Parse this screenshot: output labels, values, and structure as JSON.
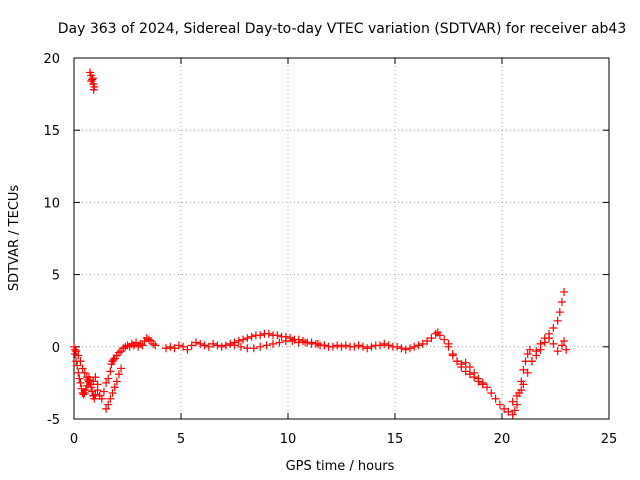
{
  "chart_data": {
    "type": "scatter",
    "title": "Day 363 of 2024, Sidereal Day-to-day VTEC variation (SDTVAR) for receiver ab43",
    "xlabel": "GPS time / hours",
    "ylabel": "SDTVAR / TECUs",
    "xlim": [
      0,
      25
    ],
    "ylim": [
      -5,
      20
    ],
    "xticks": [
      "0",
      "5",
      "10",
      "15",
      "20",
      "25"
    ],
    "yticks": [
      "-5",
      "0",
      "5",
      "10",
      "15",
      "20"
    ],
    "grid": true,
    "marker": "plus",
    "color": "#ff0000",
    "series": [
      {
        "name": "SDTVAR",
        "x": [
          0.75,
          0.8,
          0.85,
          0.9,
          0.95,
          0.8,
          0.88,
          0.92,
          0.0,
          0.05,
          0.1,
          0.15,
          0.2,
          0.25,
          0.3,
          0.35,
          0.4,
          0.45,
          0.5,
          0.55,
          0.6,
          0.65,
          0.7,
          0.75,
          0.8,
          0.85,
          0.9,
          0.95,
          1.0,
          0.05,
          0.1,
          0.2,
          0.3,
          0.4,
          0.5,
          0.6,
          0.7,
          0.8,
          0.9,
          1.0,
          1.1,
          1.1,
          1.2,
          1.3,
          1.4,
          1.5,
          1.6,
          1.7,
          1.75,
          1.8,
          1.85,
          1.9,
          2.0,
          2.1,
          2.2,
          2.3,
          2.4,
          2.5,
          2.6,
          2.7,
          2.8,
          2.9,
          3.0,
          3.1,
          3.2,
          3.3,
          3.4,
          3.5,
          3.6,
          3.7,
          3.8,
          1.5,
          1.6,
          1.7,
          1.8,
          1.9,
          2.0,
          2.1,
          2.2,
          4.3,
          4.5,
          4.7,
          4.9,
          5.1,
          5.3,
          5.5,
          5.7,
          5.9,
          6.1,
          6.3,
          6.5,
          6.7,
          6.9,
          7.1,
          7.3,
          7.5,
          7.7,
          7.9,
          8.1,
          8.3,
          8.5,
          8.7,
          8.9,
          9.1,
          9.3,
          9.5,
          9.7,
          9.9,
          10.1,
          10.3,
          10.5,
          10.7,
          10.9,
          11.1,
          11.3,
          11.5,
          11.7,
          11.9,
          12.1,
          12.3,
          12.5,
          12.7,
          12.9,
          13.1,
          13.3,
          13.5,
          13.7,
          13.9,
          14.1,
          14.3,
          14.5,
          14.7,
          14.9,
          15.1,
          15.3,
          15.5,
          15.7,
          15.9,
          16.1,
          16.3,
          16.5,
          16.7,
          16.9,
          17.0,
          17.1,
          17.3,
          17.5,
          7.5,
          7.8,
          8.1,
          8.4,
          8.7,
          9.0,
          9.3,
          9.6,
          9.9,
          10.2,
          10.5,
          10.8,
          11.1,
          11.4,
          11.7,
          17.5,
          17.7,
          17.9,
          18.1,
          18.3,
          18.5,
          18.7,
          18.9,
          19.1,
          19.3,
          19.5,
          19.7,
          19.9,
          20.1,
          20.3,
          20.5,
          20.6,
          20.7,
          20.8,
          20.9,
          21.0,
          21.1,
          21.2,
          21.3,
          17.7,
          17.9,
          18.1,
          18.3,
          18.5,
          18.7,
          18.9,
          19.1,
          20.5,
          20.7,
          20.9,
          21.0,
          21.2,
          21.4,
          21.6,
          21.8,
          22.0,
          22.2,
          22.4,
          22.6,
          22.7,
          22.8,
          22.9,
          21.4,
          21.6,
          21.8,
          22.0,
          22.2,
          22.4,
          22.6,
          22.8,
          22.9,
          23.0
        ],
        "y": [
          19.0,
          18.8,
          18.5,
          18.2,
          18.0,
          18.4,
          18.6,
          17.8,
          0.0,
          -0.5,
          -1.0,
          -1.3,
          -1.8,
          -2.2,
          -2.5,
          -2.9,
          -3.2,
          -3.3,
          -3.2,
          -3.0,
          -2.7,
          -2.3,
          -2.1,
          -2.3,
          -2.8,
          -3.1,
          -3.4,
          -3.6,
          -3.3,
          -0.2,
          -0.3,
          -0.6,
          -1.0,
          -1.5,
          -1.8,
          -2.1,
          -2.4,
          -2.6,
          -2.4,
          -2.1,
          -2.6,
          -3.0,
          -3.4,
          -3.6,
          -3.1,
          -2.5,
          -2.2,
          -1.7,
          -1.2,
          -1.0,
          -0.9,
          -0.8,
          -0.6,
          -0.4,
          -0.3,
          -0.1,
          0.0,
          0.1,
          0.0,
          0.2,
          0.1,
          0.3,
          0.0,
          0.2,
          0.1,
          0.4,
          0.6,
          0.5,
          0.4,
          0.2,
          0.1,
          -4.3,
          -4.0,
          -3.6,
          -3.2,
          -2.8,
          -2.4,
          -1.9,
          -1.5,
          -0.1,
          0.0,
          -0.1,
          0.1,
          0.0,
          -0.2,
          0.1,
          0.3,
          0.2,
          0.1,
          0.0,
          0.2,
          0.1,
          0.0,
          0.1,
          0.2,
          0.3,
          0.4,
          0.5,
          0.6,
          0.7,
          0.8,
          0.8,
          0.9,
          0.9,
          0.8,
          0.8,
          0.7,
          0.7,
          0.6,
          0.5,
          0.5,
          0.4,
          0.3,
          0.3,
          0.2,
          0.1,
          0.1,
          0.0,
          0.0,
          0.1,
          0.0,
          0.1,
          0.0,
          0.0,
          0.1,
          0.0,
          -0.1,
          0.0,
          0.1,
          0.1,
          0.2,
          0.1,
          0.0,
          0.0,
          -0.1,
          -0.2,
          -0.1,
          0.0,
          0.1,
          0.2,
          0.4,
          0.6,
          0.9,
          1.0,
          0.8,
          0.5,
          0.2,
          0.1,
          0.0,
          -0.1,
          -0.1,
          0.0,
          0.1,
          0.2,
          0.3,
          0.4,
          0.4,
          0.3,
          0.3,
          0.2,
          0.2,
          0.1,
          0.0,
          -0.5,
          -1.0,
          -1.4,
          -1.7,
          -1.9,
          -2.1,
          -2.2,
          -2.5,
          -2.8,
          -3.2,
          -3.6,
          -4.0,
          -4.3,
          -4.5,
          -4.7,
          -4.4,
          -4.0,
          -3.2,
          -2.4,
          -1.6,
          -1.0,
          -0.5,
          -0.2,
          -0.6,
          -1.0,
          -1.2,
          -1.1,
          -1.4,
          -1.8,
          -2.4,
          -2.6,
          -3.8,
          -3.4,
          -3.0,
          -2.6,
          -1.8,
          -1.0,
          -0.3,
          0.2,
          0.6,
          0.9,
          1.3,
          1.8,
          2.4,
          3.1,
          3.8,
          -1.0,
          -0.6,
          -0.2,
          0.3,
          0.6,
          0.2,
          -0.3,
          0.1,
          0.4,
          -0.2
        ]
      }
    ]
  }
}
